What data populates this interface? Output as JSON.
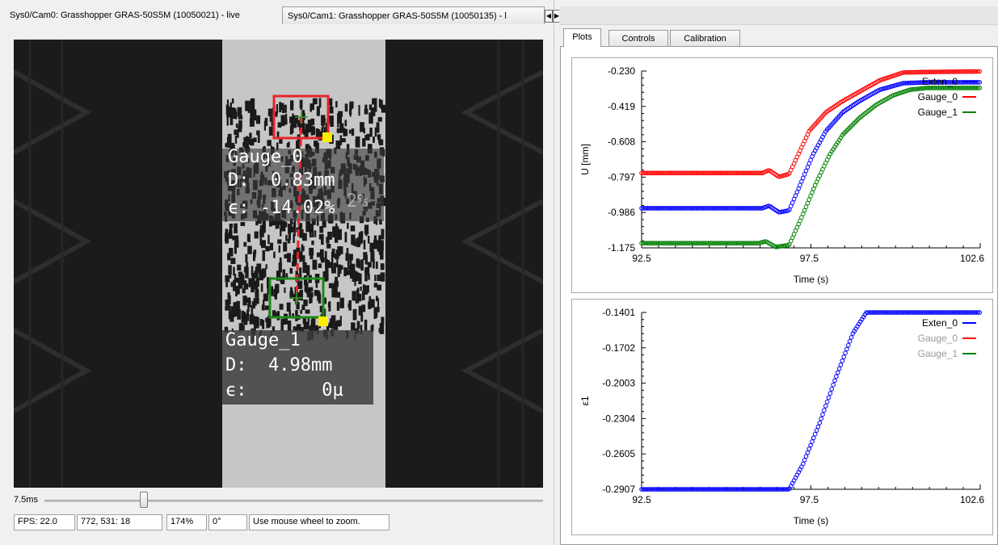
{
  "camera_tabs": {
    "active": "Sys0/Cam0: Grasshopper GRAS-50S5M (10050021) - live",
    "inactive": "Sys0/Cam1: Grasshopper GRAS-50S5M (10050135) - l"
  },
  "overlay": {
    "gauge0": {
      "name": "Gauge_0",
      "d_line": "D:  0.83mm",
      "e_line": "ϵ: -14.02%",
      "ghost": "2%"
    },
    "gauge1": {
      "name": "Gauge_1",
      "d_line": "D:  4.98mm",
      "e_line": "ϵ:       0µ"
    }
  },
  "exposure": {
    "label": "7.5ms",
    "slider_fraction": 0.2
  },
  "status": {
    "fps": "FPS: 22.0",
    "cursor": "772, 531: 18",
    "zoom": "174%",
    "rotation": "0°",
    "hint": "Use mouse wheel to zoom."
  },
  "plot_tabs": [
    "Plots",
    "Controls",
    "Calibration"
  ],
  "active_plot_tab": 0,
  "colors": {
    "exten": "#0000ff",
    "gauge0": "#ff0000",
    "gauge1": "#008000",
    "legend_inactive": "#9a9a9a"
  },
  "chart_data": [
    {
      "type": "scatter",
      "xlabel": "Time (s)",
      "ylabel": "U [mm]",
      "xlim": [
        92.5,
        102.6
      ],
      "ylim": [
        -1.175,
        -0.23
      ],
      "xticks": [
        "92.5",
        "97.5",
        "102.6"
      ],
      "yticks": [
        "-0.230",
        "-0.419",
        "-0.608",
        "-0.797",
        "-0.986",
        "-1.175"
      ],
      "legend": [
        {
          "name": "Exten_0",
          "color": "#0000ff",
          "active": true
        },
        {
          "name": "Gauge_0",
          "color": "#ff0000",
          "active": true
        },
        {
          "name": "Gauge_1",
          "color": "#008000",
          "active": true
        }
      ],
      "series": [
        {
          "name": "Gauge_0",
          "color": "#ff0000",
          "points": [
            [
              92.5,
              -0.775
            ],
            [
              96.1,
              -0.775
            ],
            [
              96.3,
              -0.76
            ],
            [
              96.6,
              -0.795
            ],
            [
              96.9,
              -0.78
            ],
            [
              97.5,
              -0.55
            ],
            [
              98.0,
              -0.45
            ],
            [
              98.5,
              -0.39
            ],
            [
              99.0,
              -0.34
            ],
            [
              99.6,
              -0.28
            ],
            [
              100.3,
              -0.238
            ],
            [
              101.0,
              -0.235
            ],
            [
              102.6,
              -0.232
            ]
          ]
        },
        {
          "name": "Exten_0",
          "color": "#0000ff",
          "points": [
            [
              92.5,
              -0.963
            ],
            [
              96.1,
              -0.963
            ],
            [
              96.3,
              -0.95
            ],
            [
              96.6,
              -0.985
            ],
            [
              96.9,
              -0.975
            ],
            [
              97.2,
              -0.85
            ],
            [
              97.6,
              -0.68
            ],
            [
              98.0,
              -0.55
            ],
            [
              98.5,
              -0.45
            ],
            [
              99.0,
              -0.39
            ],
            [
              99.6,
              -0.33
            ],
            [
              100.3,
              -0.295
            ],
            [
              101.0,
              -0.29
            ],
            [
              102.6,
              -0.29
            ]
          ]
        },
        {
          "name": "Gauge_1",
          "color": "#008000",
          "points": [
            [
              92.5,
              -1.15
            ],
            [
              96.0,
              -1.15
            ],
            [
              96.2,
              -1.14
            ],
            [
              96.5,
              -1.17
            ],
            [
              96.9,
              -1.16
            ],
            [
              97.3,
              -1.0
            ],
            [
              97.7,
              -0.83
            ],
            [
              98.1,
              -0.68
            ],
            [
              98.5,
              -0.57
            ],
            [
              99.0,
              -0.48
            ],
            [
              99.5,
              -0.41
            ],
            [
              100.0,
              -0.36
            ],
            [
              100.5,
              -0.33
            ],
            [
              101.0,
              -0.32
            ],
            [
              102.6,
              -0.32
            ]
          ]
        }
      ]
    },
    {
      "type": "scatter",
      "xlabel": "Time (s)",
      "ylabel": "ε1",
      "xlim": [
        92.5,
        102.6
      ],
      "ylim": [
        -0.2907,
        -0.1401
      ],
      "xticks": [
        "92.5",
        "97.5",
        "102.6"
      ],
      "yticks": [
        "-0.1401",
        "-0.1702",
        "-0.2003",
        "-0.2304",
        "-0.2605",
        "-0.2907"
      ],
      "legend": [
        {
          "name": "Exten_0",
          "color": "#0000ff",
          "active": true
        },
        {
          "name": "Gauge_0",
          "color": "#ff0000",
          "active": false
        },
        {
          "name": "Gauge_1",
          "color": "#008000",
          "active": false
        }
      ],
      "series": [
        {
          "name": "Exten_0",
          "color": "#0000ff",
          "points": [
            [
              92.5,
              -0.2907
            ],
            [
              96.9,
              -0.2907
            ],
            [
              97.3,
              -0.27
            ],
            [
              97.8,
              -0.235
            ],
            [
              98.3,
              -0.195
            ],
            [
              98.8,
              -0.158
            ],
            [
              99.2,
              -0.1401
            ],
            [
              102.6,
              -0.1401
            ]
          ]
        }
      ]
    }
  ]
}
